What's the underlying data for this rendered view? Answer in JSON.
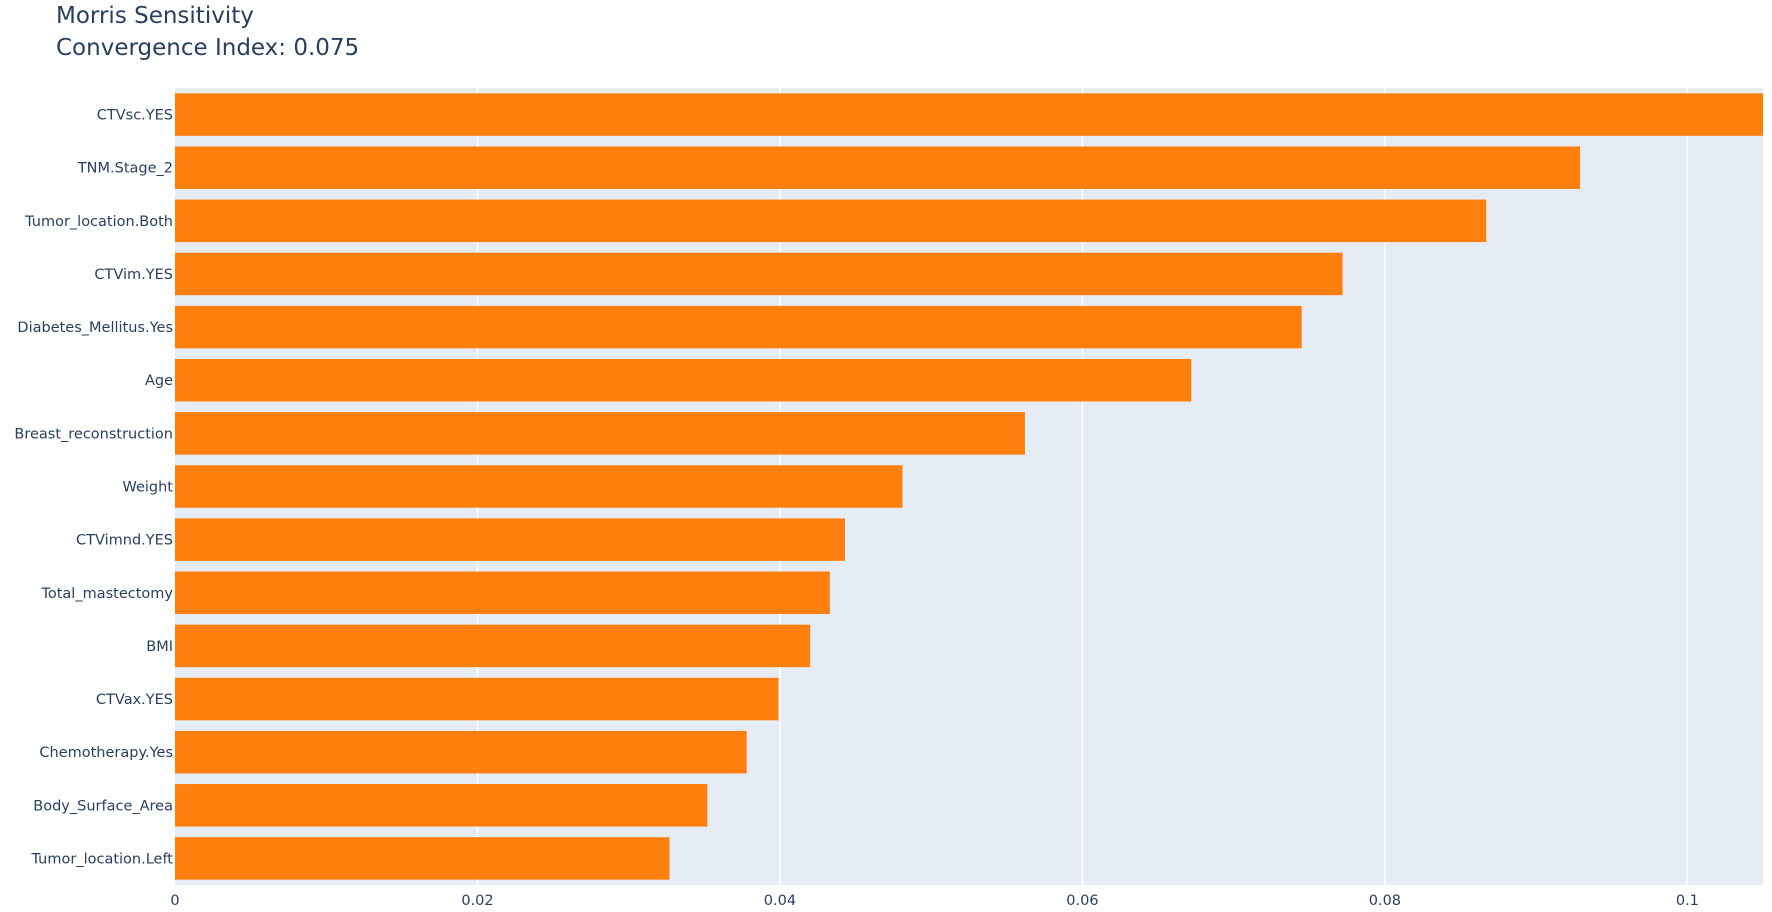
{
  "title": {
    "line1": "Morris Sensitivity",
    "line2": "Convergence Index: 0.075"
  },
  "colors": {
    "bar": "#ff7f0e",
    "plot_bg": "#e5ecf6",
    "grid": "#ffffff",
    "text": "#2a3f5f"
  },
  "chart_data": {
    "type": "bar",
    "orientation": "horizontal",
    "categories": [
      "CTVsc.YES",
      "TNM.Stage_2",
      "Tumor_location.Both",
      "CTVim.YES",
      "Diabetes_Mellitus.Yes",
      "Age",
      "Breast_reconstruction",
      "Weight",
      "CTVimnd.YES",
      "Total_mastectomy",
      "BMI",
      "CTVax.YES",
      "Chemotherapy.Yes",
      "Body_Surface_Area",
      "Tumor_location.Left"
    ],
    "values": [
      0.105,
      0.0929,
      0.0867,
      0.0772,
      0.0745,
      0.0672,
      0.0562,
      0.0481,
      0.0443,
      0.0433,
      0.042,
      0.0399,
      0.0378,
      0.0352,
      0.0327
    ],
    "xlim": [
      0,
      0.105
    ],
    "xticks": [
      0,
      0.02,
      0.04,
      0.06,
      0.08,
      0.1
    ],
    "xtick_labels": [
      "0",
      "0.02",
      "0.04",
      "0.06",
      "0.08",
      "0.1"
    ],
    "grid": true,
    "legend": "none"
  }
}
